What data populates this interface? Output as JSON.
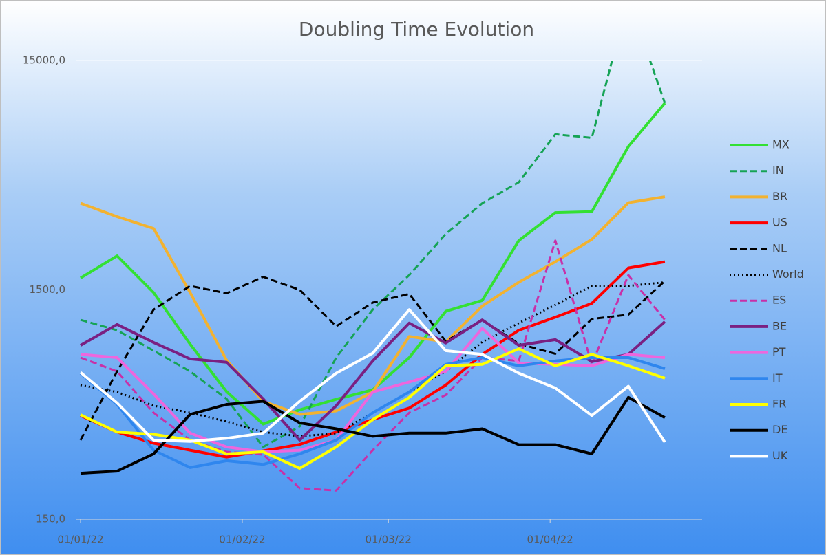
{
  "chart_data": {
    "type": "line",
    "title": "Doubling Time Evolution",
    "x": [
      "01/01/22",
      "08/01/22",
      "15/01/22",
      "22/01/22",
      "29/01/22",
      "05/02/22",
      "12/02/22",
      "19/02/22",
      "26/02/22",
      "05/03/22",
      "12/03/22",
      "19/03/22",
      "26/03/22",
      "02/04/22",
      "09/04/22",
      "16/04/22",
      "23/04/22"
    ],
    "xlim": [
      "01/01/22",
      "30/04/22"
    ],
    "xticks": [
      "01/01/22",
      "01/02/22",
      "01/03/22",
      "01/04/22"
    ],
    "ylim": [
      150,
      15000
    ],
    "yticks": [
      {
        "value": 150,
        "label": "150,0"
      },
      {
        "value": 1500,
        "label": "1500,0"
      },
      {
        "value": 15000,
        "label": "15000,0"
      }
    ],
    "ylog": true,
    "grid": true,
    "legend": "right",
    "series": [
      {
        "name": "MX",
        "color": "#33e033",
        "style": "solid",
        "values": [
          1690,
          2110,
          1460,
          870,
          540,
          390,
          450,
          500,
          550,
          760,
          1210,
          1350,
          2460,
          3260,
          3290,
          6330,
          9780
        ]
      },
      {
        "name": "IN",
        "color": "#16a356",
        "style": "dashed",
        "values": [
          1110,
          1000,
          815,
          662,
          502,
          310,
          381,
          760,
          1230,
          1740,
          2630,
          3580,
          4420,
          7150,
          6900,
          28000,
          9780
        ]
      },
      {
        "name": "BR",
        "color": "#f2b230",
        "style": "solid",
        "values": [
          3580,
          3130,
          2780,
          1460,
          740,
          490,
          430,
          445,
          538,
          940,
          890,
          1275,
          1620,
          1990,
          2490,
          3600,
          3820
        ]
      },
      {
        "name": "US",
        "color": "#ff0000",
        "style": "solid",
        "values": [
          425,
          360,
          322,
          300,
          280,
          298,
          318,
          360,
          408,
          458,
          577,
          785,
          1000,
          1140,
          1310,
          1870,
          1990
        ]
      },
      {
        "name": "NL",
        "color": "#000000",
        "style": "dashed",
        "values": [
          332,
          662,
          1230,
          1560,
          1450,
          1710,
          1500,
          1040,
          1320,
          1440,
          895,
          1110,
          873,
          790,
          1120,
          1170,
          1640
        ]
      },
      {
        "name": "World",
        "color": "#000000",
        "style": "dotted",
        "values": [
          577,
          538,
          469,
          437,
          400,
          360,
          345,
          355,
          437,
          538,
          662,
          890,
          1075,
          1290,
          1560,
          1560,
          1620
        ]
      },
      {
        "name": "ES",
        "color": "#c830a8",
        "style": "dashed",
        "values": [
          760,
          662,
          437,
          332,
          295,
          287,
          205,
          200,
          300,
          437,
          522,
          760,
          735,
          2460,
          710,
          1740,
          1110
        ]
      },
      {
        "name": "BE",
        "color": "#7a2082",
        "style": "solid",
        "values": [
          860,
          1060,
          885,
          750,
          725,
          502,
          332,
          469,
          735,
          1075,
          880,
          1110,
          860,
          910,
          730,
          785,
          1090
        ]
      },
      {
        "name": "PT",
        "color": "#ee66dd",
        "style": "solid",
        "values": [
          785,
          760,
          528,
          356,
          310,
          295,
          300,
          332,
          538,
          595,
          662,
          1020,
          720,
          710,
          700,
          785,
          760
        ]
      },
      {
        "name": "IT",
        "color": "#2f86ee",
        "style": "solid",
        "values": [
          650,
          475,
          300,
          252,
          270,
          260,
          289,
          332,
          437,
          538,
          710,
          760,
          700,
          735,
          760,
          760,
          680
        ]
      },
      {
        "name": "FR",
        "color": "#ffff00",
        "style": "solid",
        "values": [
          428,
          360,
          352,
          332,
          289,
          295,
          250,
          310,
          408,
          510,
          700,
          710,
          830,
          700,
          785,
          700,
          618
        ]
      },
      {
        "name": "DE",
        "color": "#000000",
        "style": "solid",
        "values": [
          238,
          243,
          289,
          430,
          475,
          490,
          395,
          372,
          345,
          356,
          356,
          372,
          317,
          317,
          289,
          510,
          416
        ]
      },
      {
        "name": "UK",
        "color": "#ffffff",
        "style": "solid",
        "values": [
          655,
          482,
          332,
          328,
          338,
          356,
          490,
          650,
          795,
          1230,
          815,
          785,
          650,
          560,
          425,
          570,
          325
        ]
      }
    ]
  }
}
